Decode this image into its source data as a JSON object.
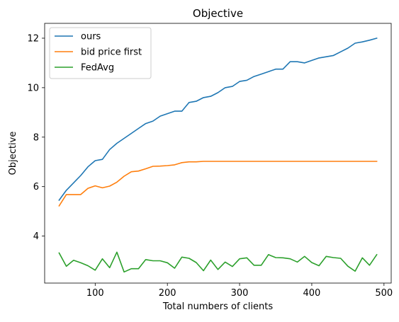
{
  "chart_data": {
    "type": "line",
    "title": "Objective",
    "xlabel": "Total numbers of clients",
    "ylabel": "Objective",
    "xlim": [
      30,
      510
    ],
    "ylim": [
      2.1,
      12.6
    ],
    "xticks": [
      100,
      200,
      300,
      400,
      500
    ],
    "yticks": [
      4,
      6,
      8,
      10,
      12
    ],
    "legend_position": "upper-left",
    "grid": false,
    "x": [
      50,
      60,
      70,
      80,
      90,
      100,
      110,
      120,
      130,
      140,
      150,
      160,
      170,
      180,
      190,
      200,
      210,
      220,
      230,
      240,
      250,
      260,
      270,
      280,
      290,
      300,
      310,
      320,
      330,
      340,
      350,
      360,
      370,
      380,
      390,
      400,
      410,
      420,
      430,
      440,
      450,
      460,
      470,
      480,
      490
    ],
    "series": [
      {
        "name": "ours",
        "color": "#1f77b4",
        "values": [
          5.45,
          5.85,
          6.15,
          6.45,
          6.8,
          7.05,
          7.1,
          7.5,
          7.75,
          7.95,
          8.15,
          8.35,
          8.55,
          8.65,
          8.85,
          8.95,
          9.05,
          9.05,
          9.4,
          9.45,
          9.6,
          9.65,
          9.8,
          10.0,
          10.05,
          10.25,
          10.3,
          10.45,
          10.55,
          10.65,
          10.75,
          10.75,
          11.05,
          11.05,
          11.0,
          11.1,
          11.2,
          11.25,
          11.3,
          11.45,
          11.6,
          11.8,
          11.85,
          11.92,
          12.0
        ]
      },
      {
        "name": "bid price first",
        "color": "#ff7f0e",
        "values": [
          5.22,
          5.68,
          5.68,
          5.68,
          5.93,
          6.03,
          5.95,
          6.02,
          6.18,
          6.42,
          6.6,
          6.63,
          6.72,
          6.82,
          6.83,
          6.85,
          6.88,
          6.97,
          7.0,
          7.0,
          7.02,
          7.02,
          7.02,
          7.02,
          7.02,
          7.02,
          7.02,
          7.02,
          7.02,
          7.02,
          7.02,
          7.02,
          7.02,
          7.02,
          7.02,
          7.02,
          7.02,
          7.02,
          7.02,
          7.02,
          7.02,
          7.02,
          7.02,
          7.02,
          7.02
        ]
      },
      {
        "name": "FedAvg",
        "color": "#2ca02c",
        "values": [
          3.32,
          2.78,
          3.02,
          2.92,
          2.8,
          2.62,
          3.08,
          2.72,
          3.35,
          2.55,
          2.68,
          2.68,
          3.05,
          3.0,
          3.0,
          2.92,
          2.7,
          3.15,
          3.1,
          2.93,
          2.6,
          3.03,
          2.65,
          2.95,
          2.77,
          3.08,
          3.12,
          2.82,
          2.82,
          3.25,
          3.13,
          3.12,
          3.08,
          2.95,
          3.18,
          2.93,
          2.8,
          3.18,
          3.13,
          3.1,
          2.78,
          2.58,
          3.12,
          2.82,
          3.25
        ]
      }
    ]
  }
}
